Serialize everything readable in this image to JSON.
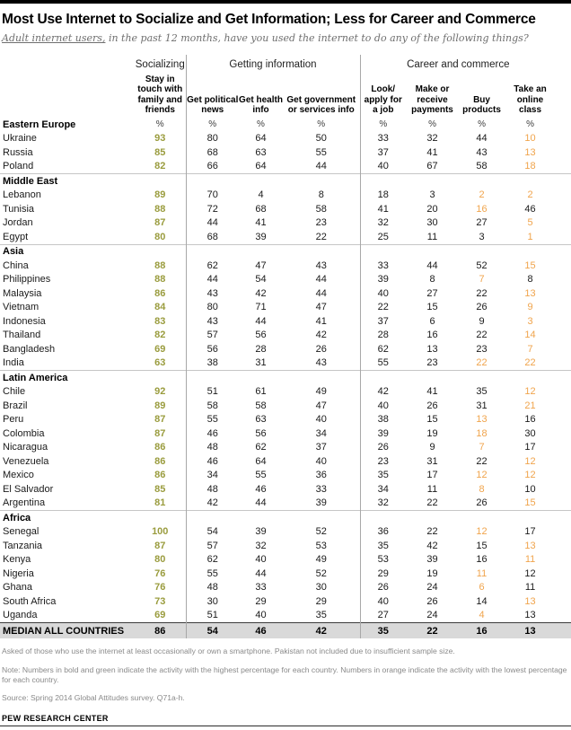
{
  "header": {
    "title": "Most Use Internet to Socialize and Get Information; Less for Career and Commerce",
    "subtitle_underlined": "Adult internet users,",
    "subtitle_rest": " in the past 12 months, have you used the internet to do any of the following things?"
  },
  "chart_data": {
    "type": "table",
    "groups": [
      {
        "label": "Socializing",
        "span": 1
      },
      {
        "label": "Getting information",
        "span": 3
      },
      {
        "label": "Career and commerce",
        "span": 4
      }
    ],
    "columns": [
      "Stay in touch with family and friends",
      "Get political news",
      "Get health info",
      "Get government or services info",
      "Look/ apply for a job",
      "Make or receive payments",
      "Buy products",
      "Take an online class"
    ],
    "percent_symbol": "%",
    "sections": [
      {
        "region": "Eastern Europe",
        "show_percent": true,
        "countries": [
          {
            "name": "Ukraine",
            "values": [
              93,
              80,
              64,
              50,
              33,
              32,
              44,
              10
            ],
            "high": [
              0
            ],
            "low": [
              7
            ]
          },
          {
            "name": "Russia",
            "values": [
              85,
              68,
              63,
              55,
              37,
              41,
              43,
              13
            ],
            "high": [
              0
            ],
            "low": [
              7
            ]
          },
          {
            "name": "Poland",
            "values": [
              82,
              66,
              64,
              44,
              40,
              67,
              58,
              18
            ],
            "high": [
              0
            ],
            "low": [
              7
            ]
          }
        ]
      },
      {
        "region": "Middle East",
        "show_percent": false,
        "countries": [
          {
            "name": "Lebanon",
            "values": [
              89,
              70,
              4,
              8,
              18,
              3,
              2,
              2
            ],
            "high": [
              0
            ],
            "low": [
              6,
              7
            ]
          },
          {
            "name": "Tunisia",
            "values": [
              88,
              72,
              68,
              58,
              41,
              20,
              16,
              46
            ],
            "high": [
              0
            ],
            "low": [
              6
            ]
          },
          {
            "name": "Jordan",
            "values": [
              87,
              44,
              41,
              23,
              32,
              30,
              27,
              5
            ],
            "high": [
              0
            ],
            "low": [
              7
            ]
          },
          {
            "name": "Egypt",
            "values": [
              80,
              68,
              39,
              22,
              25,
              11,
              3,
              1
            ],
            "high": [
              0
            ],
            "low": [
              7
            ]
          }
        ]
      },
      {
        "region": "Asia",
        "show_percent": false,
        "countries": [
          {
            "name": "China",
            "values": [
              88,
              62,
              47,
              43,
              33,
              44,
              52,
              15
            ],
            "high": [
              0
            ],
            "low": [
              7
            ]
          },
          {
            "name": "Philippines",
            "values": [
              88,
              44,
              54,
              44,
              39,
              8,
              7,
              8
            ],
            "high": [
              0
            ],
            "low": [
              6
            ]
          },
          {
            "name": "Malaysia",
            "values": [
              86,
              43,
              42,
              44,
              40,
              27,
              22,
              13
            ],
            "high": [
              0
            ],
            "low": [
              7
            ]
          },
          {
            "name": "Vietnam",
            "values": [
              84,
              80,
              71,
              47,
              22,
              15,
              26,
              9
            ],
            "high": [
              0
            ],
            "low": [
              7
            ]
          },
          {
            "name": "Indonesia",
            "values": [
              83,
              43,
              44,
              41,
              37,
              6,
              9,
              3
            ],
            "high": [
              0
            ],
            "low": [
              7
            ]
          },
          {
            "name": "Thailand",
            "values": [
              82,
              57,
              56,
              42,
              28,
              16,
              22,
              14
            ],
            "high": [
              0
            ],
            "low": [
              7
            ]
          },
          {
            "name": "Bangladesh",
            "values": [
              69,
              56,
              28,
              26,
              62,
              13,
              23,
              7
            ],
            "high": [
              0
            ],
            "low": [
              7
            ]
          },
          {
            "name": "India",
            "values": [
              63,
              38,
              31,
              43,
              55,
              23,
              22,
              22
            ],
            "high": [
              0
            ],
            "low": [
              6,
              7
            ]
          }
        ]
      },
      {
        "region": "Latin America",
        "show_percent": false,
        "countries": [
          {
            "name": "Chile",
            "values": [
              92,
              51,
              61,
              49,
              42,
              41,
              35,
              12
            ],
            "high": [
              0
            ],
            "low": [
              7
            ]
          },
          {
            "name": "Brazil",
            "values": [
              89,
              58,
              58,
              47,
              40,
              26,
              31,
              21
            ],
            "high": [
              0
            ],
            "low": [
              7
            ]
          },
          {
            "name": "Peru",
            "values": [
              87,
              55,
              63,
              40,
              38,
              15,
              13,
              16
            ],
            "high": [
              0
            ],
            "low": [
              6
            ]
          },
          {
            "name": "Colombia",
            "values": [
              87,
              46,
              56,
              34,
              39,
              19,
              18,
              30
            ],
            "high": [
              0
            ],
            "low": [
              6
            ]
          },
          {
            "name": "Nicaragua",
            "values": [
              86,
              48,
              62,
              37,
              26,
              9,
              7,
              17
            ],
            "high": [
              0
            ],
            "low": [
              6
            ]
          },
          {
            "name": "Venezuela",
            "values": [
              86,
              46,
              64,
              40,
              23,
              31,
              22,
              12
            ],
            "high": [
              0
            ],
            "low": [
              7
            ]
          },
          {
            "name": "Mexico",
            "values": [
              86,
              34,
              55,
              36,
              35,
              17,
              12,
              12
            ],
            "high": [
              0
            ],
            "low": [
              6,
              7
            ]
          },
          {
            "name": "El Salvador",
            "values": [
              85,
              48,
              46,
              33,
              34,
              11,
              8,
              10
            ],
            "high": [
              0
            ],
            "low": [
              6
            ]
          },
          {
            "name": "Argentina",
            "values": [
              81,
              42,
              44,
              39,
              32,
              22,
              26,
              15
            ],
            "high": [
              0
            ],
            "low": [
              7
            ]
          }
        ]
      },
      {
        "region": "Africa",
        "show_percent": false,
        "countries": [
          {
            "name": "Senegal",
            "values": [
              100,
              54,
              39,
              52,
              36,
              22,
              12,
              17
            ],
            "high": [
              0
            ],
            "low": [
              6
            ]
          },
          {
            "name": "Tanzania",
            "values": [
              87,
              57,
              32,
              53,
              35,
              42,
              15,
              13
            ],
            "high": [
              0
            ],
            "low": [
              7
            ]
          },
          {
            "name": "Kenya",
            "values": [
              80,
              62,
              40,
              49,
              53,
              39,
              16,
              11
            ],
            "high": [
              0
            ],
            "low": [
              7
            ]
          },
          {
            "name": "Nigeria",
            "values": [
              76,
              55,
              44,
              52,
              29,
              19,
              11,
              12
            ],
            "high": [
              0
            ],
            "low": [
              6
            ]
          },
          {
            "name": "Ghana",
            "values": [
              76,
              48,
              33,
              30,
              26,
              24,
              6,
              11
            ],
            "high": [
              0
            ],
            "low": [
              6
            ]
          },
          {
            "name": "South Africa",
            "values": [
              73,
              30,
              29,
              29,
              40,
              26,
              14,
              13
            ],
            "high": [
              0
            ],
            "low": [
              7
            ]
          },
          {
            "name": "Uganda",
            "values": [
              69,
              51,
              40,
              35,
              27,
              24,
              4,
              13
            ],
            "high": [
              0
            ],
            "low": [
              6
            ]
          }
        ]
      }
    ],
    "median": {
      "label": "MEDIAN ALL COUNTRIES",
      "values": [
        86,
        54,
        46,
        42,
        35,
        22,
        16,
        13
      ]
    }
  },
  "footnotes": [
    "Asked of those who use the internet at least occasionally or own a smartphone. Pakistan not included due to insufficient sample size.",
    "Note: Numbers in bold and green indicate the activity with the highest percentage for each country. Numbers in orange indicate the activity with the lowest percentage for each country.",
    "Source: Spring 2014 Global Attitudes survey. Q71a-h."
  ],
  "branding": "PEW RESEARCH CENTER",
  "colors": {
    "highest_green": "#9a9c3e",
    "lowest_orange": "#f0a44c",
    "median_row_bg": "#d9d9d9",
    "top_bar": "#000000"
  }
}
